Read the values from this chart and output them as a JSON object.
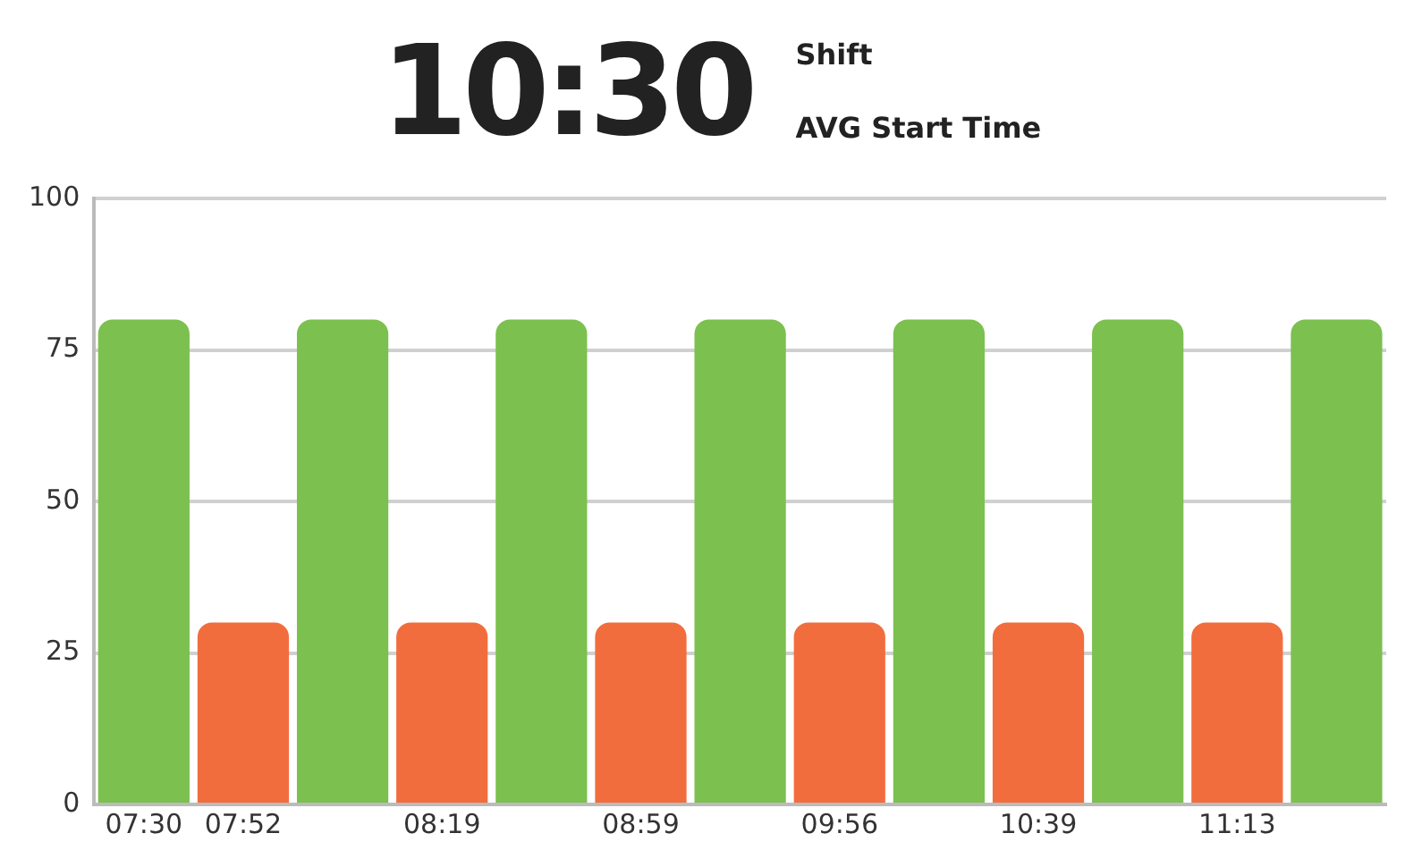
{
  "chart_data": {
    "type": "bar",
    "title": "10:30",
    "annotations": [
      "Shift",
      "AVG Start Time"
    ],
    "categories": [
      "07:30",
      "07:52",
      null,
      "08:19",
      null,
      "08:59",
      null,
      "09:56",
      null,
      "10:39",
      null,
      "11:13",
      null
    ],
    "values": [
      80,
      30,
      80,
      30,
      80,
      30,
      80,
      30,
      80,
      30,
      80,
      30,
      80
    ],
    "colors": [
      "#7cc04f",
      "#f26d3d",
      "#7cc04f",
      "#f26d3d",
      "#7cc04f",
      "#f26d3d",
      "#7cc04f",
      "#f26d3d",
      "#7cc04f",
      "#f26d3d",
      "#7cc04f",
      "#f26d3d",
      "#7cc04f"
    ],
    "ylim": [
      0,
      100
    ],
    "yticks": [
      0,
      25,
      50,
      75,
      100
    ],
    "grid": "y",
    "legend": false
  }
}
